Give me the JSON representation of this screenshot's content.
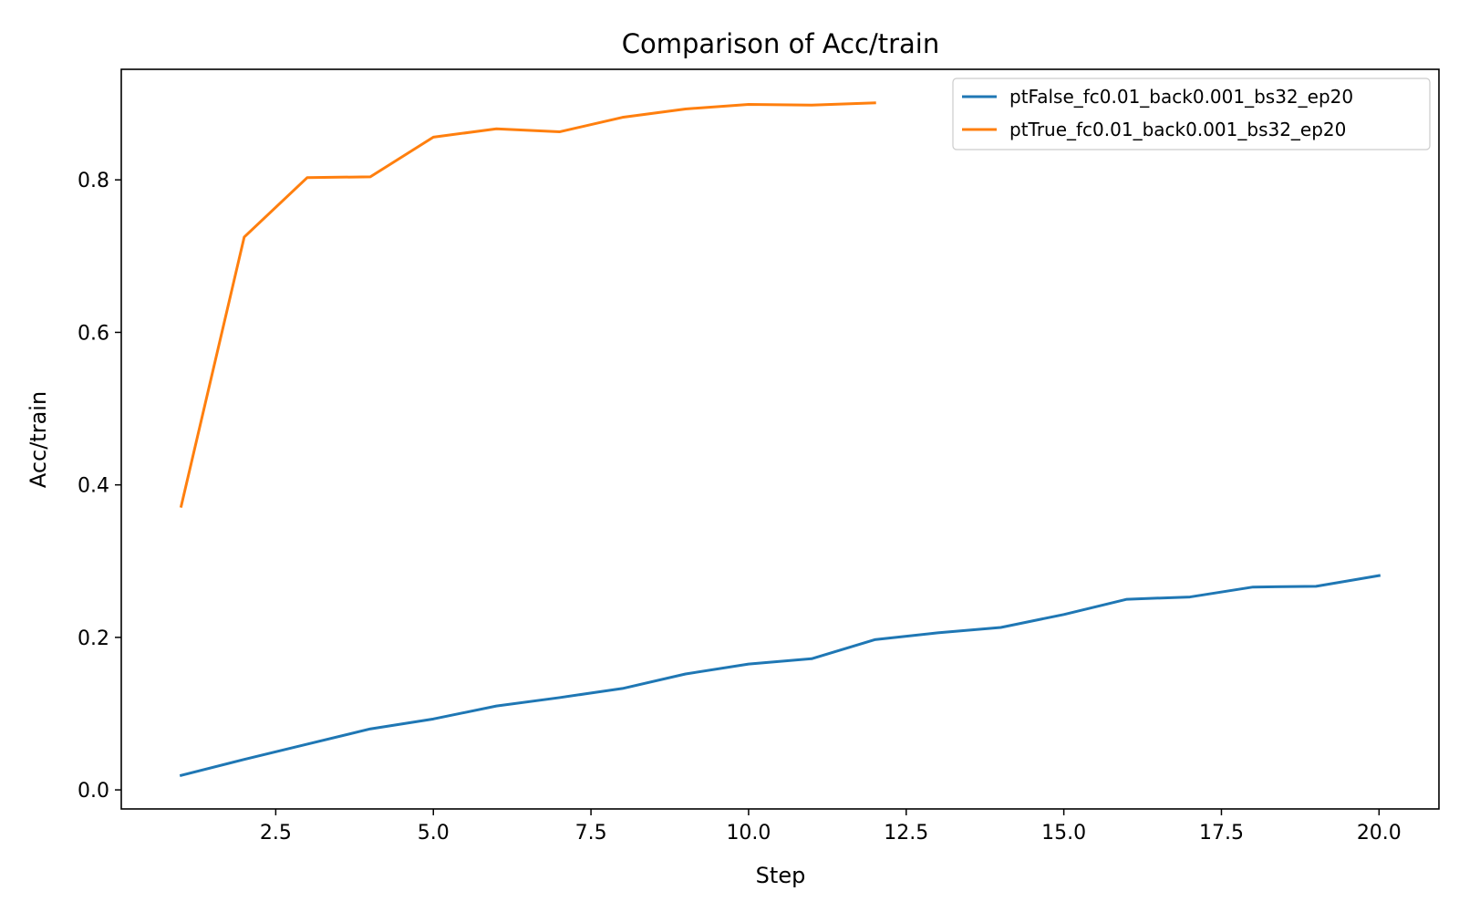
{
  "chart_data": {
    "type": "line",
    "title": "Comparison of Acc/train",
    "xlabel": "Step",
    "ylabel": "Acc/train",
    "xlim": [
      0.05,
      20.95
    ],
    "ylim": [
      -0.025,
      0.945
    ],
    "xticks": [
      2.5,
      5.0,
      7.5,
      10.0,
      12.5,
      15.0,
      17.5,
      20.0
    ],
    "xtick_labels": [
      "2.5",
      "5.0",
      "7.5",
      "10.0",
      "12.5",
      "15.0",
      "17.5",
      "20.0"
    ],
    "yticks": [
      0.0,
      0.2,
      0.4,
      0.6,
      0.8
    ],
    "ytick_labels": [
      "0.0",
      "0.2",
      "0.4",
      "0.6",
      "0.8"
    ],
    "grid": false,
    "legend_position": "top-right",
    "series": [
      {
        "name": "ptFalse_fc0.01_back0.001_bs32_ep20",
        "color": "#1f77b4",
        "x": [
          1,
          2,
          3,
          4,
          5,
          6,
          7,
          8,
          9,
          10,
          11,
          12,
          13,
          14,
          15,
          16,
          17,
          18,
          19,
          20
        ],
        "values": [
          0.019,
          0.04,
          0.06,
          0.08,
          0.093,
          0.11,
          0.121,
          0.133,
          0.152,
          0.165,
          0.172,
          0.197,
          0.206,
          0.213,
          0.23,
          0.25,
          0.253,
          0.266,
          0.267,
          0.281
        ]
      },
      {
        "name": "ptTrue_fc0.01_back0.001_bs32_ep20",
        "color": "#ff7f0e",
        "x": [
          1,
          2,
          3,
          4,
          5,
          6,
          7,
          8,
          9,
          10,
          11,
          12
        ],
        "values": [
          0.372,
          0.725,
          0.803,
          0.804,
          0.856,
          0.867,
          0.863,
          0.882,
          0.893,
          0.899,
          0.898,
          0.901
        ]
      }
    ]
  }
}
